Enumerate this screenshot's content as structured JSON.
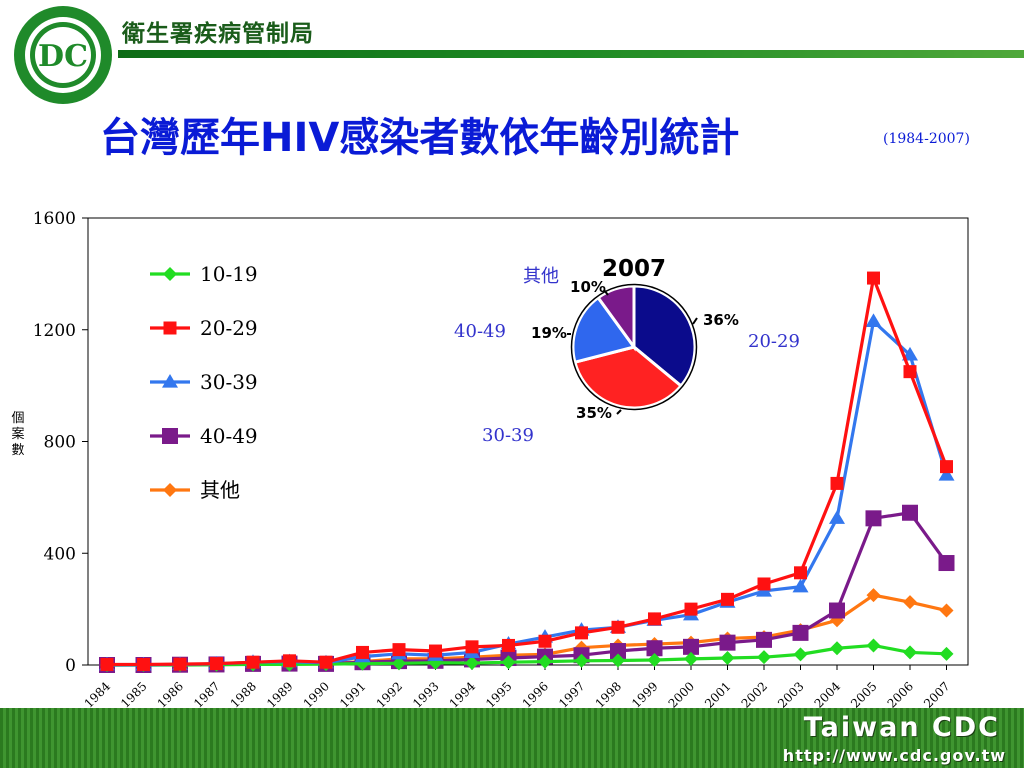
{
  "header": {
    "org_name": "衛生署疾病管制局",
    "logo_text": "衛生署疾病管制局 Center for Disease Control",
    "logo_color": "#1f8a2a"
  },
  "title": "台灣歷年HIV感染者數依年齡別統計",
  "subtitle": "(1984-2007)",
  "footer": {
    "brand": "Taiwan CDC",
    "url": "http://www.cdc.gov.tw"
  },
  "chart_data": [
    {
      "type": "line",
      "ylabel": "個案數",
      "xlabel": "",
      "ylim": [
        0,
        1600
      ],
      "yticks": [
        0,
        400,
        800,
        1200,
        1600
      ],
      "x": [
        "1984",
        "1985",
        "1986",
        "1987",
        "1988",
        "1989",
        "1990",
        "1991",
        "1992",
        "1993",
        "1994",
        "1995",
        "1996",
        "1997",
        "1998",
        "1999",
        "2000",
        "2001",
        "2002",
        "2003",
        "2004",
        "2005",
        "2006",
        "2007"
      ],
      "grid": false,
      "legend_position": "top-left",
      "series": [
        {
          "name": "10-19",
          "color": "#22dd22",
          "marker": "diamond",
          "values": [
            0,
            0,
            0,
            1,
            2,
            2,
            3,
            5,
            6,
            8,
            7,
            10,
            12,
            15,
            16,
            18,
            22,
            25,
            28,
            38,
            60,
            70,
            45,
            40
          ]
        },
        {
          "name": "20-29",
          "color": "#ff1111",
          "marker": "square",
          "values": [
            2,
            2,
            3,
            5,
            10,
            15,
            10,
            45,
            55,
            50,
            65,
            70,
            85,
            115,
            135,
            165,
            200,
            235,
            290,
            330,
            650,
            1385,
            1050,
            710
          ]
        },
        {
          "name": "30-39",
          "color": "#3377ee",
          "marker": "triangle",
          "values": [
            1,
            1,
            2,
            4,
            10,
            12,
            8,
            30,
            40,
            35,
            45,
            75,
            100,
            125,
            135,
            160,
            180,
            225,
            265,
            280,
            525,
            1230,
            1110,
            680
          ]
        },
        {
          "name": "40-49",
          "color": "#7a1a8a",
          "marker": "square",
          "values": [
            0,
            0,
            1,
            2,
            4,
            5,
            4,
            10,
            14,
            15,
            20,
            25,
            30,
            35,
            50,
            60,
            65,
            80,
            90,
            115,
            195,
            525,
            545,
            365
          ]
        },
        {
          "name": "其他",
          "color": "#ff7711",
          "marker": "diamond",
          "values": [
            0,
            1,
            2,
            3,
            6,
            10,
            4,
            12,
            22,
            22,
            28,
            35,
            38,
            62,
            70,
            75,
            80,
            95,
            100,
            125,
            160,
            250,
            225,
            195
          ]
        }
      ]
    },
    {
      "type": "pie",
      "title": "2007",
      "slices": [
        {
          "label": "20-29",
          "percent_label": "36%",
          "value": 36,
          "color": "#0b0b8c"
        },
        {
          "label": "30-39",
          "percent_label": "35%",
          "value": 35,
          "color": "#ff2222"
        },
        {
          "label": "40-49",
          "percent_label": "19%",
          "value": 19,
          "color": "#2f67ee"
        },
        {
          "label": "其他",
          "percent_label": "10%",
          "value": 10,
          "color": "#7a1a8a"
        }
      ]
    }
  ]
}
